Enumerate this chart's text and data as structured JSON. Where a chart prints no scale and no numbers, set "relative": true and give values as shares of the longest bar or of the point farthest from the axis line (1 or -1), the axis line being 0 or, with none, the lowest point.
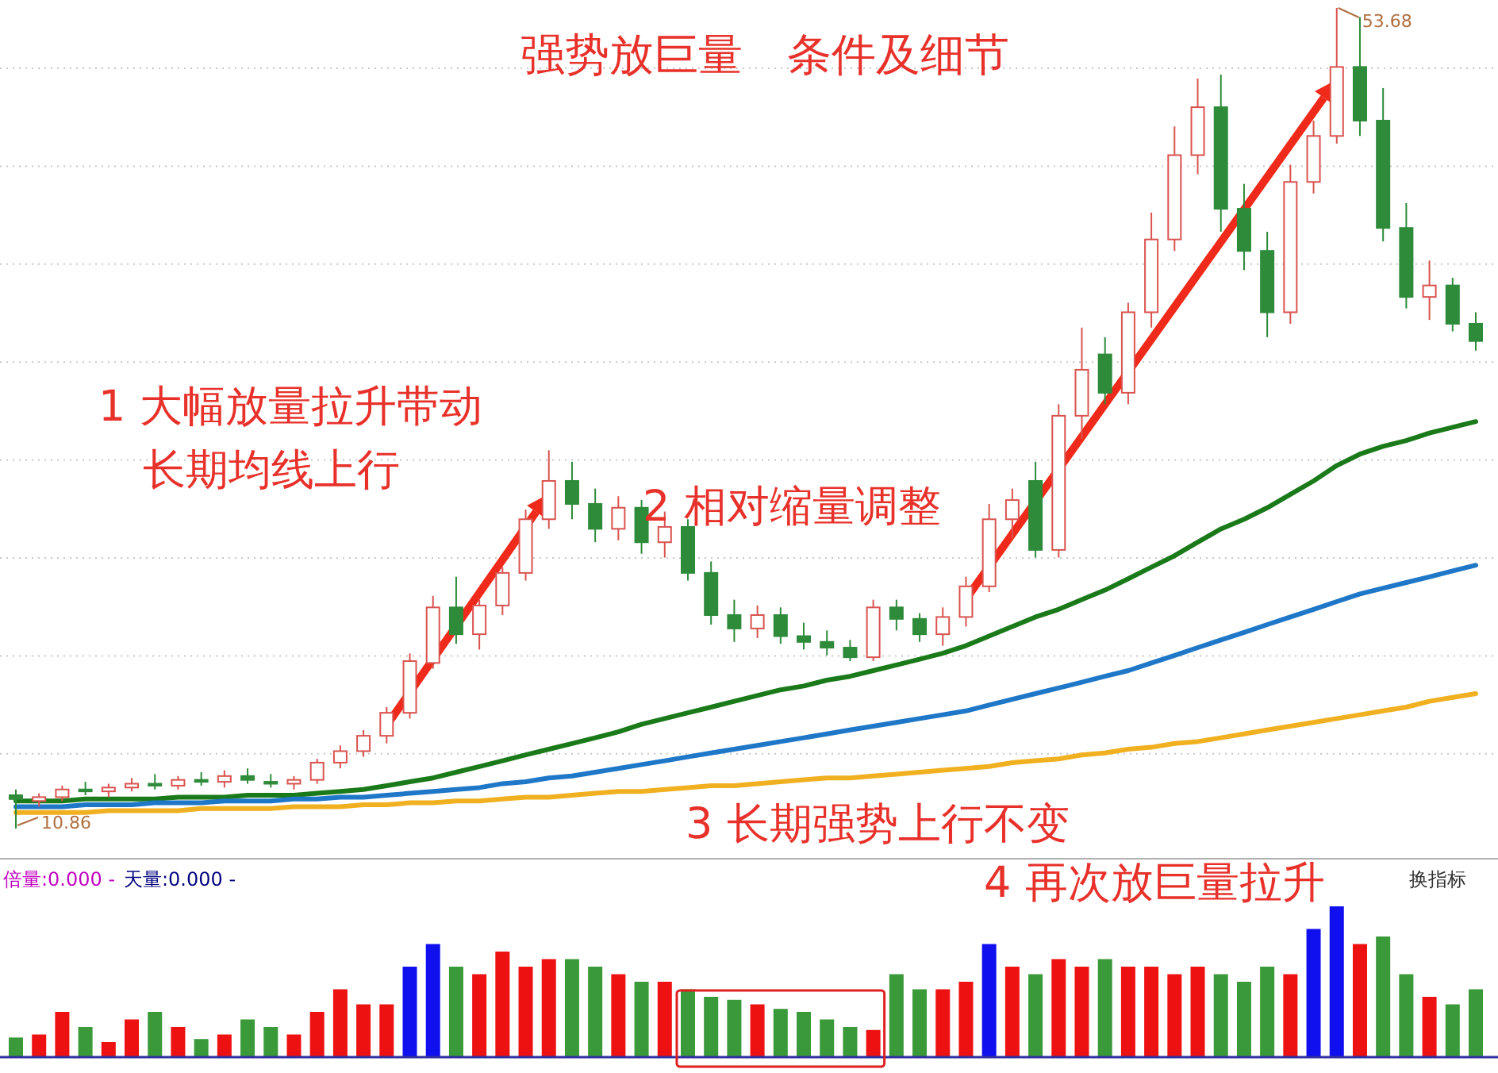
{
  "chart_data": [
    {
      "type": "candlestick",
      "title": "强势放巨量　条件及细节",
      "grid": true,
      "categories": [
        null,
        null,
        null,
        null,
        null,
        null,
        null,
        null,
        null,
        null,
        null,
        null,
        null,
        null,
        null,
        null,
        null,
        null,
        null,
        null,
        null,
        null,
        null,
        null,
        null,
        null,
        null,
        null,
        null,
        null,
        null,
        null,
        null,
        null,
        null,
        null,
        null,
        null,
        null,
        null,
        null,
        null,
        null,
        null,
        null,
        null,
        null,
        null,
        null,
        null,
        null,
        null,
        null,
        null,
        null,
        null,
        null,
        null,
        null,
        null,
        null,
        null,
        null,
        null
      ],
      "ohlc": [
        [
          12.6,
          12.9,
          10.86,
          12.4
        ],
        [
          12.3,
          12.7,
          12.0,
          12.5
        ],
        [
          12.5,
          13.1,
          12.3,
          12.9
        ],
        [
          12.9,
          13.3,
          12.6,
          12.8
        ],
        [
          12.8,
          13.2,
          12.5,
          13.0
        ],
        [
          13.0,
          13.5,
          12.8,
          13.2
        ],
        [
          13.2,
          13.7,
          12.9,
          13.1
        ],
        [
          13.1,
          13.6,
          12.9,
          13.4
        ],
        [
          13.4,
          13.8,
          13.1,
          13.3
        ],
        [
          13.3,
          13.9,
          13.0,
          13.6
        ],
        [
          13.6,
          14.0,
          13.2,
          13.4
        ],
        [
          13.3,
          13.7,
          13.0,
          13.2
        ],
        [
          13.2,
          13.6,
          12.9,
          13.4
        ],
        [
          13.4,
          14.5,
          13.2,
          14.3
        ],
        [
          14.3,
          15.2,
          14.0,
          14.9
        ],
        [
          14.9,
          16.0,
          14.6,
          15.7
        ],
        [
          15.7,
          17.2,
          15.3,
          16.9
        ],
        [
          16.9,
          20.0,
          16.6,
          19.6
        ],
        [
          19.5,
          23.0,
          19.2,
          22.4
        ],
        [
          22.4,
          24.0,
          20.5,
          21.0
        ],
        [
          21.0,
          22.8,
          20.2,
          22.5
        ],
        [
          22.5,
          24.5,
          22.0,
          24.2
        ],
        [
          24.2,
          27.5,
          23.8,
          27.0
        ],
        [
          27.0,
          30.6,
          26.5,
          29.0
        ],
        [
          29.0,
          30.0,
          27.0,
          27.8
        ],
        [
          27.8,
          28.6,
          25.8,
          26.5
        ],
        [
          26.5,
          28.2,
          25.9,
          27.6
        ],
        [
          27.6,
          28.0,
          25.2,
          25.8
        ],
        [
          25.8,
          27.4,
          25.0,
          26.6
        ],
        [
          26.6,
          27.0,
          23.8,
          24.2
        ],
        [
          24.2,
          24.8,
          21.5,
          22.0
        ],
        [
          22.0,
          22.8,
          20.6,
          21.3
        ],
        [
          21.3,
          22.5,
          20.8,
          22.0
        ],
        [
          22.0,
          22.4,
          20.5,
          20.9
        ],
        [
          20.9,
          21.6,
          20.2,
          20.6
        ],
        [
          20.6,
          21.2,
          19.9,
          20.3
        ],
        [
          20.3,
          20.7,
          19.6,
          19.8
        ],
        [
          19.8,
          22.8,
          19.6,
          22.4
        ],
        [
          22.4,
          22.8,
          21.2,
          21.8
        ],
        [
          21.8,
          22.1,
          20.6,
          21.0
        ],
        [
          21.0,
          22.4,
          20.4,
          21.9
        ],
        [
          21.9,
          24.0,
          21.4,
          23.5
        ],
        [
          23.5,
          27.8,
          23.2,
          27.0
        ],
        [
          27.0,
          28.6,
          26.0,
          28.0
        ],
        [
          29.0,
          30.0,
          25.0,
          25.4
        ],
        [
          25.4,
          33.0,
          25.0,
          32.4
        ],
        [
          32.4,
          37.0,
          31.2,
          34.8
        ],
        [
          35.6,
          36.5,
          33.0,
          33.6
        ],
        [
          33.6,
          38.3,
          33.0,
          37.8
        ],
        [
          37.8,
          43.0,
          37.0,
          41.6
        ],
        [
          41.6,
          47.5,
          41.0,
          46.0
        ],
        [
          46.0,
          50.0,
          45.0,
          48.5
        ],
        [
          48.5,
          50.2,
          42.0,
          43.2
        ],
        [
          43.2,
          44.5,
          40.0,
          41.0
        ],
        [
          41.0,
          42.0,
          36.5,
          37.8
        ],
        [
          37.8,
          45.5,
          37.2,
          44.6
        ],
        [
          44.6,
          47.8,
          44.0,
          47.0
        ],
        [
          47.0,
          53.68,
          46.6,
          50.6
        ],
        [
          50.6,
          53.2,
          47.0,
          47.8
        ],
        [
          47.8,
          49.5,
          41.5,
          42.2
        ],
        [
          42.2,
          43.5,
          38.0,
          38.6
        ],
        [
          38.6,
          40.5,
          37.4,
          39.2
        ],
        [
          39.2,
          39.6,
          36.8,
          37.2
        ],
        [
          37.2,
          37.8,
          35.8,
          36.3
        ]
      ],
      "series": [
        {
          "type": "line",
          "color": "#1a7a1a",
          "values": [
            12.3,
            12.3,
            12.3,
            12.4,
            12.4,
            12.4,
            12.4,
            12.5,
            12.5,
            12.5,
            12.6,
            12.6,
            12.6,
            12.7,
            12.8,
            12.9,
            13.1,
            13.3,
            13.5,
            13.8,
            14.1,
            14.4,
            14.7,
            15.0,
            15.3,
            15.6,
            15.9,
            16.3,
            16.6,
            16.9,
            17.2,
            17.5,
            17.8,
            18.1,
            18.3,
            18.6,
            18.8,
            19.1,
            19.4,
            19.7,
            20.0,
            20.4,
            20.9,
            21.4,
            21.9,
            22.3,
            22.8,
            23.3,
            23.9,
            24.5,
            25.1,
            25.8,
            26.5,
            27.0,
            27.6,
            28.3,
            29.0,
            29.8,
            30.4,
            30.8,
            31.1,
            31.5,
            31.8,
            32.1
          ]
        },
        {
          "type": "line",
          "color": "#1f77c8",
          "values": [
            12.0,
            12.0,
            12.0,
            12.1,
            12.1,
            12.1,
            12.2,
            12.2,
            12.2,
            12.3,
            12.3,
            12.3,
            12.4,
            12.4,
            12.5,
            12.5,
            12.6,
            12.7,
            12.8,
            12.9,
            13.0,
            13.2,
            13.3,
            13.5,
            13.6,
            13.8,
            14.0,
            14.2,
            14.4,
            14.6,
            14.8,
            15.0,
            15.2,
            15.4,
            15.6,
            15.8,
            16.0,
            16.2,
            16.4,
            16.6,
            16.8,
            17.0,
            17.3,
            17.6,
            17.9,
            18.2,
            18.5,
            18.8,
            19.1,
            19.5,
            19.9,
            20.3,
            20.7,
            21.1,
            21.5,
            21.9,
            22.3,
            22.7,
            23.1,
            23.4,
            23.7,
            24.0,
            24.3,
            24.6
          ]
        },
        {
          "type": "line",
          "color": "#f0b020",
          "values": [
            11.7,
            11.7,
            11.7,
            11.7,
            11.8,
            11.8,
            11.8,
            11.8,
            11.9,
            11.9,
            11.9,
            11.9,
            12.0,
            12.0,
            12.0,
            12.1,
            12.1,
            12.2,
            12.2,
            12.3,
            12.3,
            12.4,
            12.5,
            12.5,
            12.6,
            12.7,
            12.8,
            12.8,
            12.9,
            13.0,
            13.1,
            13.1,
            13.2,
            13.3,
            13.4,
            13.5,
            13.5,
            13.6,
            13.7,
            13.8,
            13.9,
            14.0,
            14.1,
            14.3,
            14.4,
            14.5,
            14.7,
            14.8,
            15.0,
            15.1,
            15.3,
            15.4,
            15.6,
            15.8,
            16.0,
            16.2,
            16.4,
            16.6,
            16.8,
            17.0,
            17.2,
            17.5,
            17.7,
            17.9
          ]
        }
      ],
      "annotations": [
        "1 大幅放量拉升带动",
        "长期均线上行",
        "2 相对缩量调整",
        "3 长期强势上行不变",
        "4 再次放巨量拉升",
        "10.86",
        "53.68"
      ]
    },
    {
      "type": "bar",
      "relative": true,
      "categories": [
        null,
        null,
        null,
        null,
        null,
        null,
        null,
        null,
        null,
        null,
        null,
        null,
        null,
        null,
        null,
        null,
        null,
        null,
        null,
        null,
        null,
        null,
        null,
        null,
        null,
        null,
        null,
        null,
        null,
        null,
        null,
        null,
        null,
        null,
        null,
        null,
        null,
        null,
        null,
        null,
        null,
        null,
        null,
        null,
        null,
        null,
        null,
        null,
        null,
        null,
        null,
        null,
        null,
        null,
        null,
        null,
        null,
        null,
        null,
        null,
        null,
        null,
        null,
        null
      ],
      "values": [
        0.13,
        0.15,
        0.3,
        0.2,
        0.1,
        0.25,
        0.3,
        0.2,
        0.12,
        0.15,
        0.25,
        0.2,
        0.15,
        0.3,
        0.45,
        0.35,
        0.35,
        0.6,
        0.75,
        0.6,
        0.55,
        0.7,
        0.6,
        0.65,
        0.65,
        0.6,
        0.55,
        0.5,
        0.5,
        0.45,
        0.4,
        0.38,
        0.35,
        0.32,
        0.3,
        0.25,
        0.2,
        0.18,
        0.55,
        0.45,
        0.45,
        0.5,
        0.75,
        0.6,
        0.55,
        0.65,
        0.6,
        0.65,
        0.6,
        0.6,
        0.55,
        0.6,
        0.55,
        0.5,
        0.6,
        0.55,
        0.85,
        1,
        0.75,
        0.8,
        0.55,
        0.4,
        0.35,
        0.45
      ],
      "colors": [
        "#3a9a3a",
        "#ee1111",
        "#ee1111",
        "#3a9a3a",
        "#ee1111",
        "#ee1111",
        "#3a9a3a",
        "#ee1111",
        "#3a9a3a",
        "#ee1111",
        "#3a9a3a",
        "#3a9a3a",
        "#ee1111",
        "#ee1111",
        "#ee1111",
        "#ee1111",
        "#ee1111",
        "#1010ee",
        "#1010ee",
        "#3a9a3a",
        "#ee1111",
        "#ee1111",
        "#ee1111",
        "#ee1111",
        "#3a9a3a",
        "#3a9a3a",
        "#ee1111",
        "#3a9a3a",
        "#ee1111",
        "#3a9a3a",
        "#3a9a3a",
        "#3a9a3a",
        "#ee1111",
        "#3a9a3a",
        "#3a9a3a",
        "#3a9a3a",
        "#3a9a3a",
        "#ee1111",
        "#3a9a3a",
        "#3a9a3a",
        "#ee1111",
        "#ee1111",
        "#1010ee",
        "#ee1111",
        "#3a9a3a",
        "#ee1111",
        "#ee1111",
        "#3a9a3a",
        "#ee1111",
        "#ee1111",
        "#ee1111",
        "#ee1111",
        "#3a9a3a",
        "#3a9a3a",
        "#3a9a3a",
        "#ee1111",
        "#1010ee",
        "#1010ee",
        "#ee1111",
        "#3a9a3a",
        "#3a9a3a",
        "#ee1111",
        "#3a9a3a",
        "#3a9a3a"
      ],
      "annotations": [
        "倍量:0.000 -",
        "天量:0.000 -",
        "换指标"
      ]
    }
  ]
}
